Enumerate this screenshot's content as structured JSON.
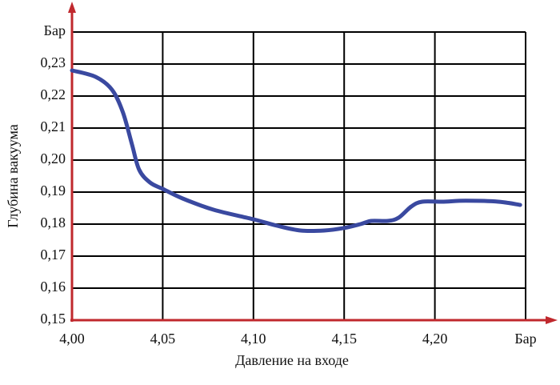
{
  "chart_data": {
    "type": "line",
    "xlabel": "Давление на входе",
    "ylabel": "Глубина вакуума",
    "xlim": [
      4.0,
      4.25
    ],
    "ylim": [
      0.15,
      0.24
    ],
    "xticks": [
      {
        "value": 4.0,
        "label": "4,00"
      },
      {
        "value": 4.05,
        "label": "4,05"
      },
      {
        "value": 4.1,
        "label": "4,10"
      },
      {
        "value": 4.15,
        "label": "4,15"
      },
      {
        "value": 4.2,
        "label": "4,20"
      },
      {
        "value": 4.25,
        "label": "Бар"
      }
    ],
    "yticks": [
      {
        "value": 0.15,
        "label": "0,15"
      },
      {
        "value": 0.16,
        "label": "0,16"
      },
      {
        "value": 0.17,
        "label": "0,17"
      },
      {
        "value": 0.18,
        "label": "0,18"
      },
      {
        "value": 0.19,
        "label": "0,19"
      },
      {
        "value": 0.2,
        "label": "0,20"
      },
      {
        "value": 0.21,
        "label": "0,21"
      },
      {
        "value": 0.22,
        "label": "0,22"
      },
      {
        "value": 0.23,
        "label": "0,23"
      },
      {
        "value": 0.24,
        "label": "Бар"
      }
    ],
    "grid": true,
    "axis_color": "#c0282d",
    "grid_color": "#000000",
    "x": [
      4.0,
      4.013,
      4.022,
      4.028,
      4.033,
      4.037,
      4.043,
      4.05,
      4.061,
      4.078,
      4.1,
      4.113,
      4.126,
      4.139,
      4.15,
      4.159,
      4.165,
      4.174,
      4.18,
      4.187,
      4.193,
      4.204,
      4.217,
      4.235,
      4.247
    ],
    "series": [
      {
        "color": "#3a49a0",
        "values": [
          0.228,
          0.226,
          0.222,
          0.215,
          0.205,
          0.197,
          0.193,
          0.191,
          0.188,
          0.1845,
          0.1815,
          0.1795,
          0.178,
          0.178,
          0.1788,
          0.18,
          0.181,
          0.181,
          0.182,
          0.1855,
          0.187,
          0.187,
          0.1873,
          0.187,
          0.186
        ]
      }
    ]
  }
}
